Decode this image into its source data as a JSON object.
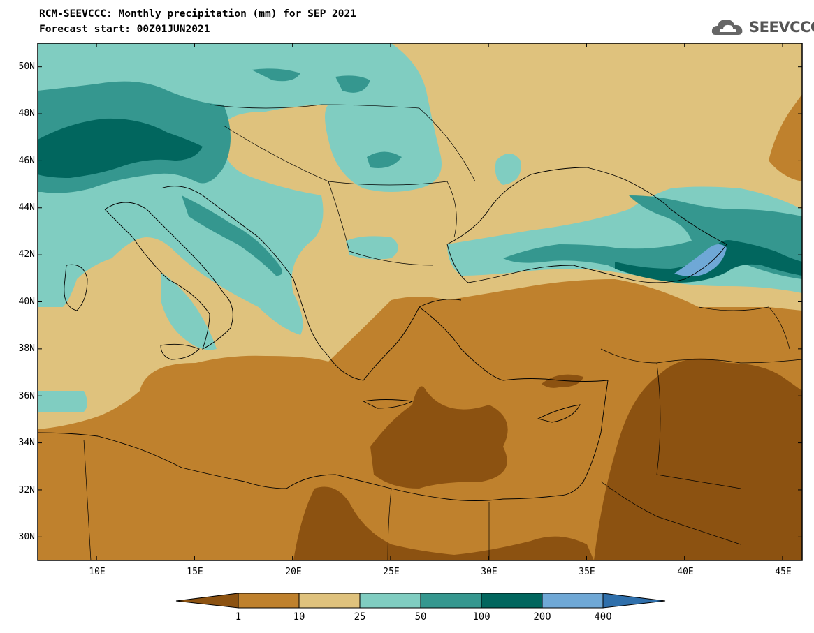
{
  "title": {
    "line1": "RCM-SEEVCCC: Monthly precipitation (mm) for SEP 2021",
    "line2": "Forecast start: 00Z01JUN2021"
  },
  "logo": {
    "text": "SEEVCCC",
    "icon": "cloud-icon",
    "color": "#555555"
  },
  "map": {
    "extent": {
      "lon_min": 7,
      "lon_max": 46,
      "lat_min": 29,
      "lat_max": 51
    },
    "lat_labels": [
      "30N",
      "32N",
      "34N",
      "36N",
      "38N",
      "40N",
      "42N",
      "44N",
      "46N",
      "48N",
      "50N"
    ],
    "lat_values": [
      30,
      32,
      34,
      36,
      38,
      40,
      42,
      44,
      46,
      48,
      50
    ],
    "lon_labels": [
      "10E",
      "15E",
      "20E",
      "25E",
      "30E",
      "35E",
      "40E",
      "45E"
    ],
    "lon_values": [
      10,
      15,
      20,
      25,
      30,
      35,
      40,
      45
    ]
  },
  "colorbar": {
    "labels": [
      "1",
      "10",
      "25",
      "50",
      "100",
      "200",
      "400"
    ],
    "colors": [
      "#8c5211",
      "#bf812d",
      "#dfc27d",
      "#80cdc1",
      "#35978f",
      "#01665e",
      "#6fa8d6",
      "#2f6fab"
    ],
    "unit": "mm"
  }
}
